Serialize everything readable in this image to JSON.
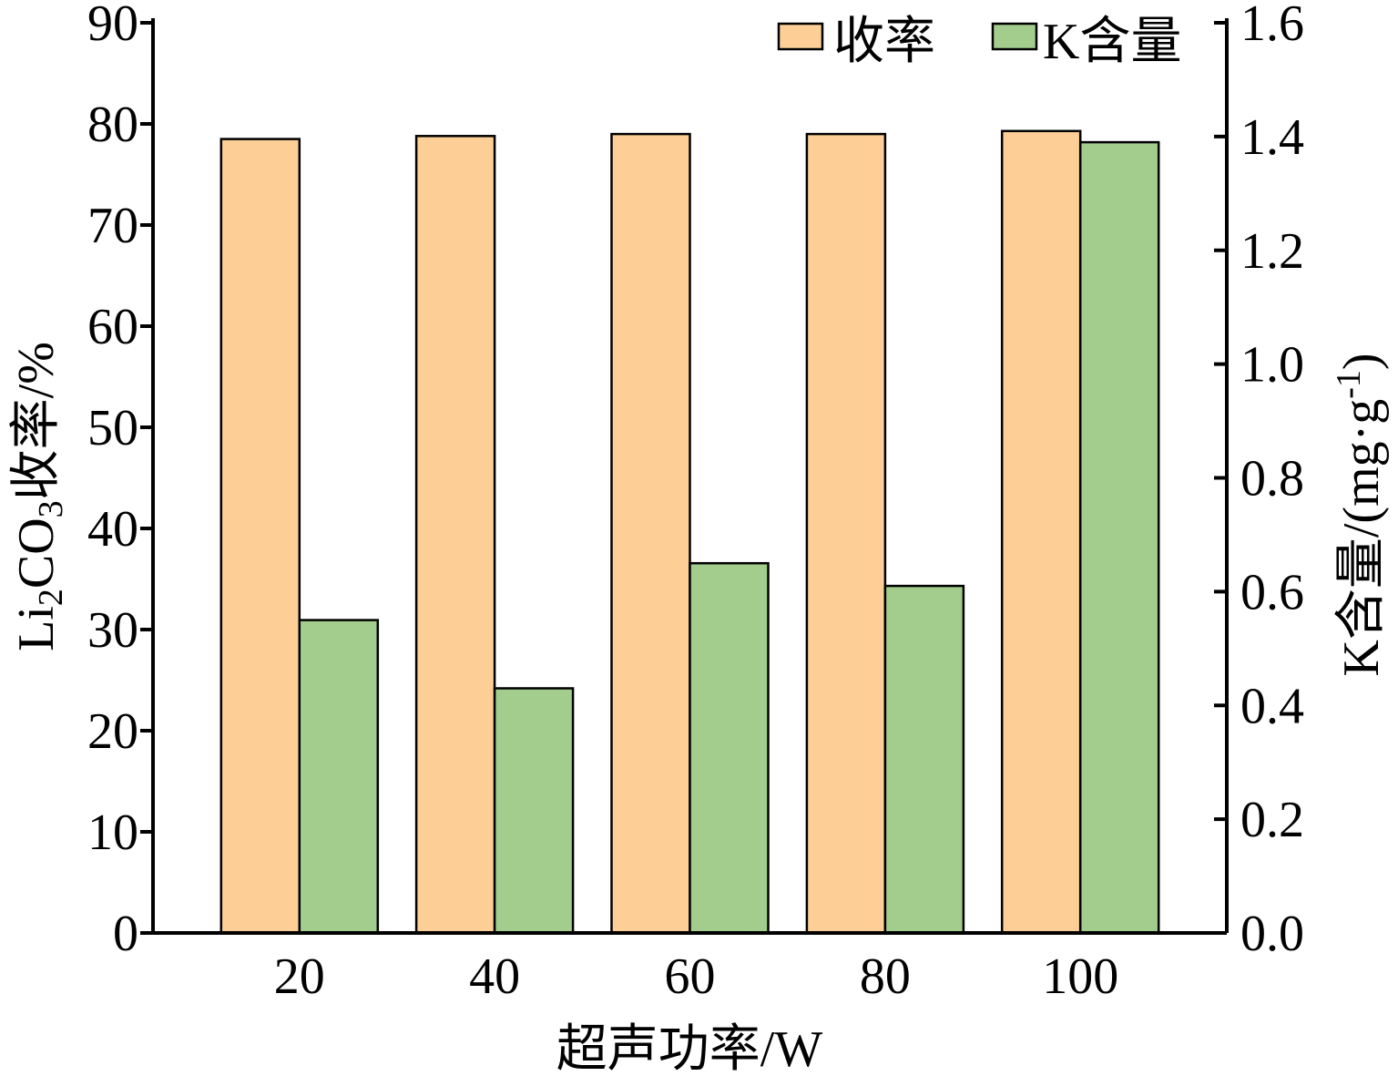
{
  "chart_data": {
    "type": "bar",
    "xlabel": "超声功率/W",
    "categories": [
      "20",
      "40",
      "60",
      "80",
      "100"
    ],
    "y_left": {
      "label_parts": [
        "Li",
        "2",
        "CO",
        "3",
        "收率/%"
      ],
      "ylim": [
        0,
        90
      ],
      "ticks": [
        "0",
        "10",
        "20",
        "30",
        "40",
        "50",
        "60",
        "70",
        "80",
        "90"
      ]
    },
    "y_right": {
      "label_parts": [
        "K含量/(mg·g",
        "-1",
        ")"
      ],
      "ylim": [
        0,
        1.6
      ],
      "ticks": [
        "0.0",
        "0.2",
        "0.4",
        "0.6",
        "0.8",
        "1.0",
        "1.2",
        "1.4",
        "1.6"
      ]
    },
    "series": [
      {
        "name": "收率",
        "axis": "left",
        "color": "#fdcf96",
        "values": [
          78.5,
          78.8,
          79.0,
          79.0,
          79.3
        ]
      },
      {
        "name": "K含量",
        "axis": "right",
        "color": "#a2cd8c",
        "values": [
          0.55,
          0.43,
          0.65,
          0.61,
          1.39
        ]
      }
    ],
    "legend": "top-right",
    "grid": false
  }
}
